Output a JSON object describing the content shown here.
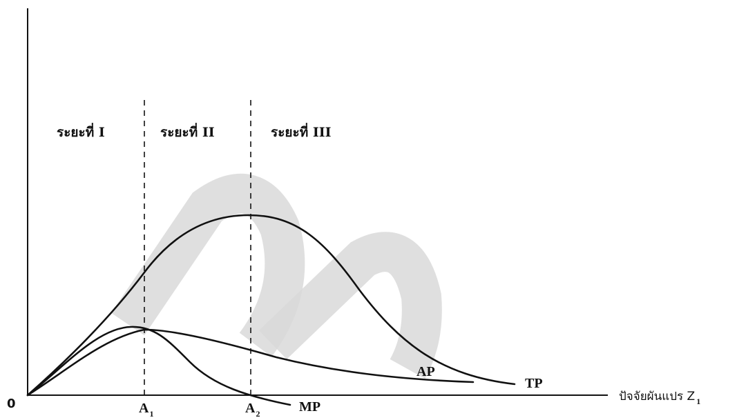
{
  "diagram": {
    "origin_label": "0",
    "x_axis": {
      "title": "ปัจจัยผันแปร Z",
      "title_subscript": "1"
    },
    "stages": [
      {
        "id": "stage-1",
        "label": "ระยะที่ I"
      },
      {
        "id": "stage-2",
        "label": "ระยะที่ II"
      },
      {
        "id": "stage-3",
        "label": "ระยะที่ III"
      }
    ],
    "boundaries": [
      {
        "id": "a1",
        "label": "A",
        "subscript": "1"
      },
      {
        "id": "a2",
        "label": "A",
        "subscript": "2"
      }
    ],
    "curves": [
      {
        "id": "tp",
        "label": "TP",
        "name": "Total Product"
      },
      {
        "id": "ap",
        "label": "AP",
        "name": "Average Product"
      },
      {
        "id": "mp",
        "label": "MP",
        "name": "Marginal Product"
      }
    ],
    "watermark": {
      "present": true,
      "color": "#d9d9d9"
    }
  }
}
